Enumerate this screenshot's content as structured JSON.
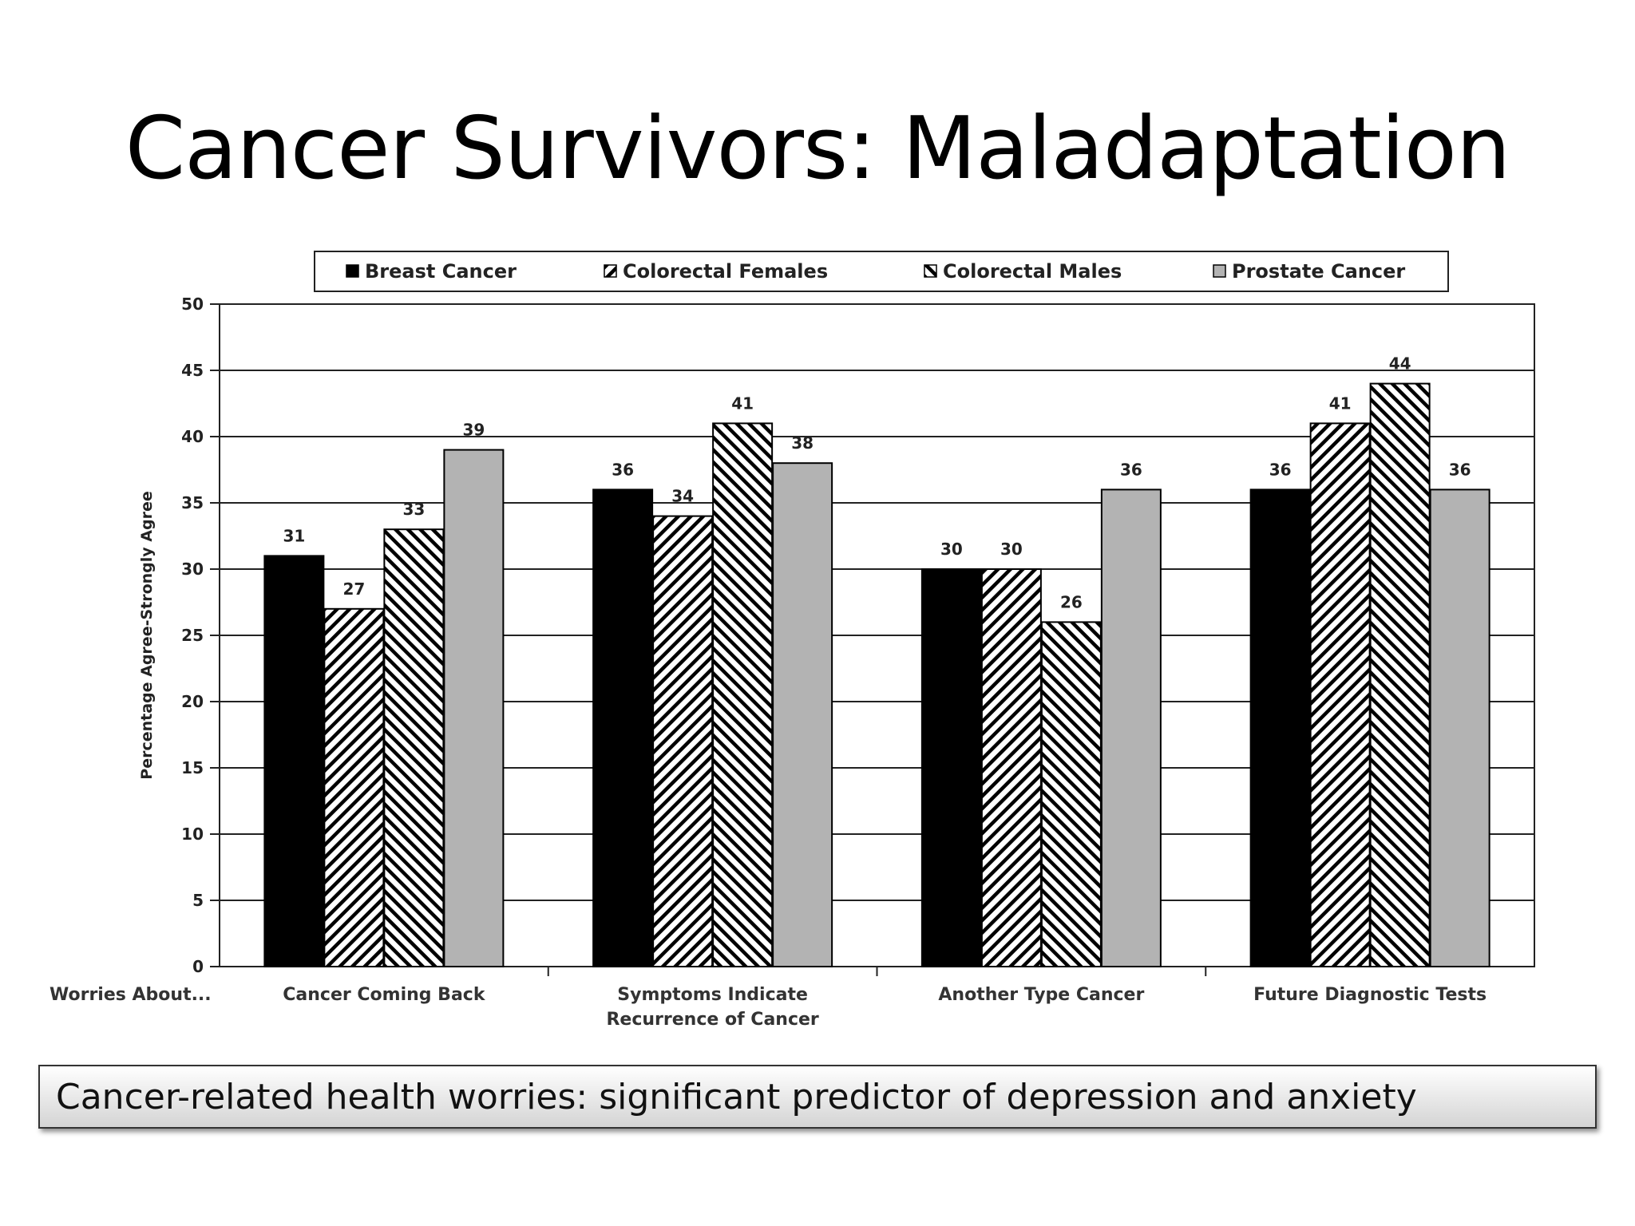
{
  "slide": {
    "title": "Cancer Survivors:  Maladaptation",
    "caption": "Cancer-related health worries: significant predictor of depression and anxiety"
  },
  "chart_data": {
    "type": "bar",
    "title": "",
    "xlabel": "Worries About...",
    "ylabel": "Percentage Agree-Strongly Agree",
    "ylim": [
      0,
      50
    ],
    "yticks": [
      0,
      5,
      10,
      15,
      20,
      25,
      30,
      35,
      40,
      45,
      50
    ],
    "grid": true,
    "legend_position": "top",
    "categories": [
      [
        "Cancer Coming Back"
      ],
      [
        "Symptoms Indicate",
        "Recurrence of Cancer"
      ],
      [
        "Another Type Cancer"
      ],
      [
        "Future Diagnostic Tests"
      ]
    ],
    "series": [
      {
        "name": "Breast Cancer",
        "pattern": "solid-black",
        "values": [
          31,
          36,
          30,
          36
        ]
      },
      {
        "name": "Colorectal Females",
        "pattern": "hatch-forward",
        "values": [
          27,
          34,
          30,
          41
        ]
      },
      {
        "name": "Colorectal Males",
        "pattern": "hatch-backward",
        "values": [
          33,
          41,
          26,
          44
        ]
      },
      {
        "name": "Prostate Cancer",
        "pattern": "solid-gray",
        "values": [
          39,
          38,
          36,
          36
        ]
      }
    ],
    "colors": {
      "black": "#000000",
      "gray": "#b3b3b3",
      "grid": "#222222"
    }
  }
}
